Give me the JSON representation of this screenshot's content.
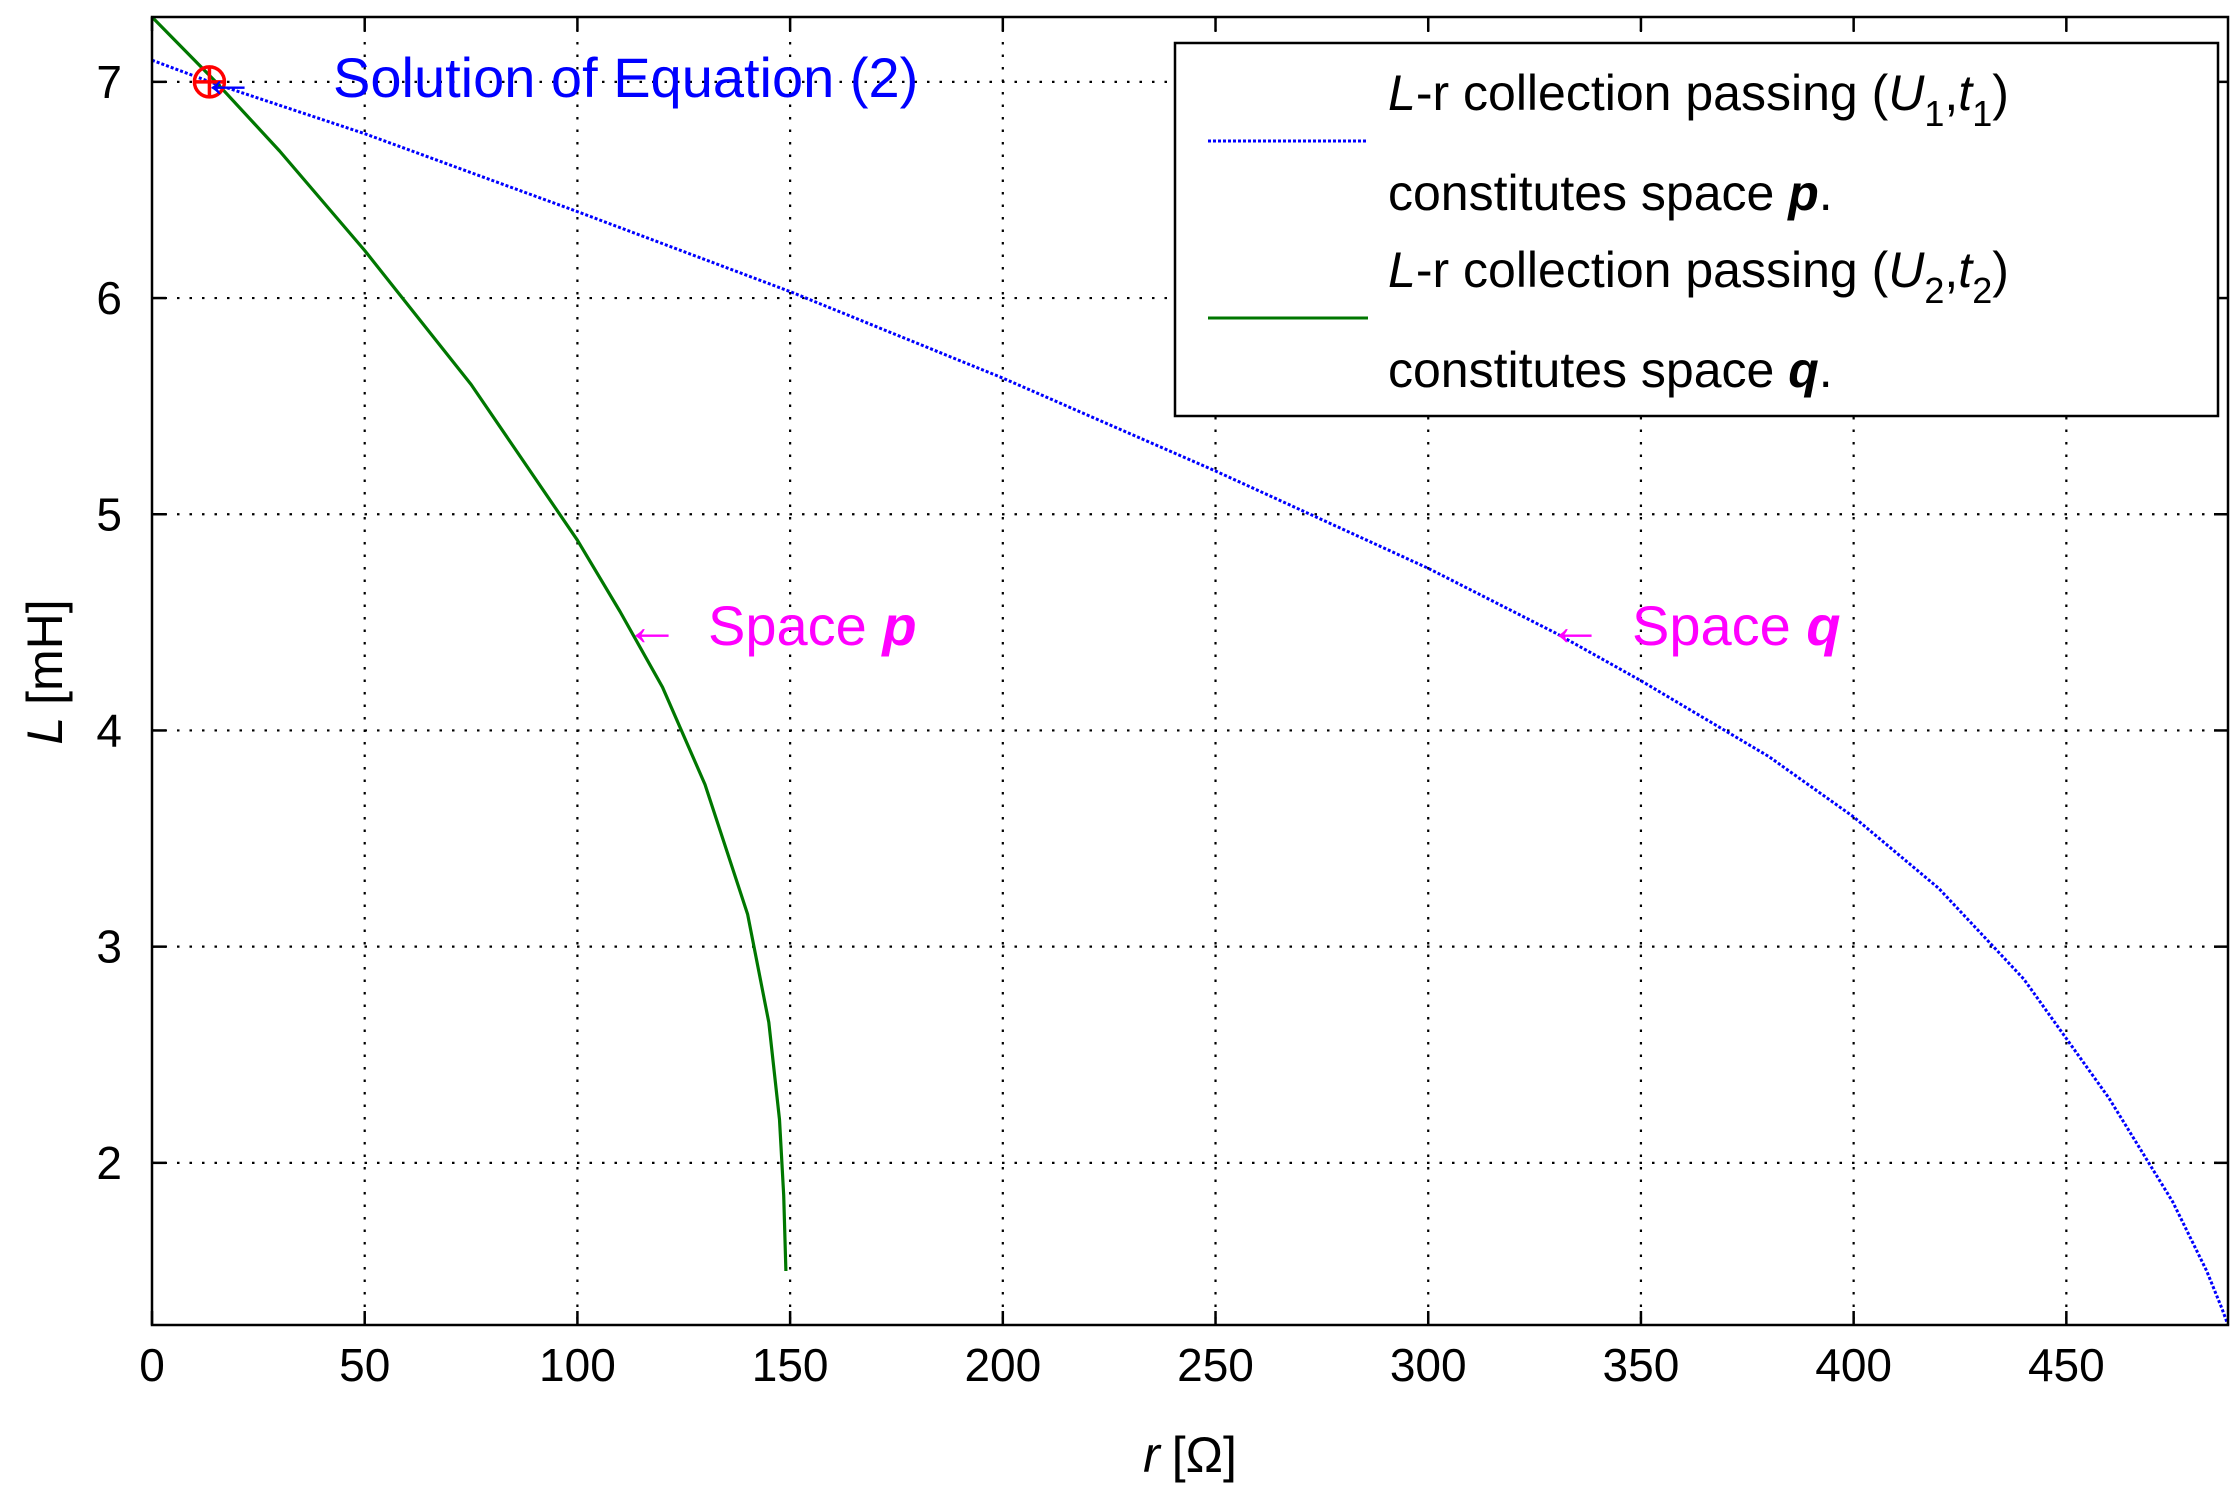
{
  "chart_data": {
    "type": "line",
    "title": "",
    "xlabel": {
      "var": "r",
      "unit": "[Ω]"
    },
    "ylabel": {
      "var": "L",
      "unit": "[mH]"
    },
    "xlim": [
      0,
      488
    ],
    "ylim": [
      1.25,
      7.3
    ],
    "grid": true,
    "x_ticks": [
      0,
      50,
      100,
      150,
      200,
      250,
      300,
      350,
      400,
      450
    ],
    "y_ticks": [
      2,
      3,
      4,
      5,
      6,
      7
    ],
    "series": [
      {
        "name": "L-r collection passing (U1,t1) constitutes space p.",
        "color": "#0000ff",
        "style": "dotted",
        "x": [
          0,
          15,
          50,
          100,
          150,
          200,
          250,
          270,
          300,
          330,
          350,
          380,
          400,
          420,
          440,
          460,
          475,
          483,
          486.5,
          488
        ],
        "y": [
          7.1,
          6.99,
          6.76,
          6.4,
          6.03,
          5.63,
          5.2,
          5.02,
          4.75,
          4.45,
          4.23,
          3.88,
          3.6,
          3.27,
          2.85,
          2.3,
          1.82,
          1.5,
          1.33,
          1.25
        ]
      },
      {
        "name": "L-r collection passing (U2,t2) constitutes space q.",
        "color": "#007700",
        "style": "solid",
        "x": [
          0,
          15,
          30,
          50,
          75,
          100,
          110,
          120,
          130,
          140,
          145,
          147.5,
          148.5,
          149
        ],
        "y": [
          7.3,
          7.0,
          6.68,
          6.22,
          5.6,
          4.88,
          4.55,
          4.2,
          3.75,
          3.15,
          2.65,
          2.2,
          1.85,
          1.5
        ]
      }
    ],
    "solution_point": {
      "x": 13.5,
      "y": 7.0
    },
    "annotations": [
      {
        "text": "Solution of Equation (2)",
        "color": "#0000ff",
        "arrow_to": {
          "x": 15,
          "y": 6.99
        }
      },
      {
        "text_plain": "Space ",
        "text_bold": "p",
        "color": "#ff00ff",
        "arrow_to": {
          "x": 110,
          "y": 4.45
        }
      },
      {
        "text_plain": "Space ",
        "text_bold": "q",
        "color": "#ff00ff",
        "arrow_to": {
          "x": 325,
          "y": 4.45
        }
      }
    ],
    "legend": {
      "position": "top-right",
      "entries": [
        {
          "prefix": "L",
          "rest": "-r collection passing (",
          "sym": "U",
          "sub1": "1",
          "mid": ",",
          "sym2": "t",
          "sub2": "1",
          "close": ")",
          "line2_pre": "constitutes space ",
          "line2_bold": "p",
          "line2_end": "."
        },
        {
          "prefix": "L",
          "rest": "-r collection passing (",
          "sym": "U",
          "sub1": "2",
          "mid": ",",
          "sym2": "t",
          "sub2": "2",
          "close": ")",
          "line2_pre": "constitutes space ",
          "line2_bold": "q",
          "line2_end": "."
        }
      ]
    }
  }
}
